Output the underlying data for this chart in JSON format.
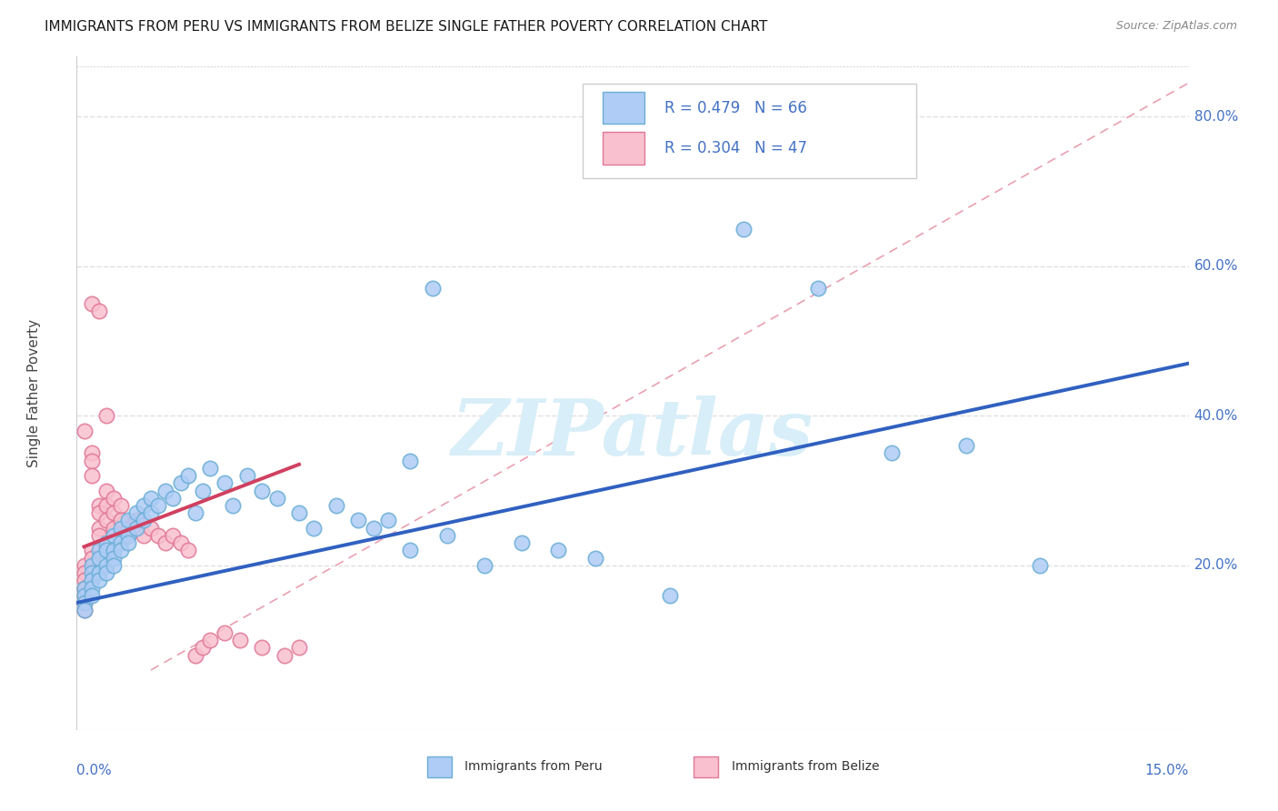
{
  "title": "IMMIGRANTS FROM PERU VS IMMIGRANTS FROM BELIZE SINGLE FATHER POVERTY CORRELATION CHART",
  "source": "Source: ZipAtlas.com",
  "ylabel": "Single Father Poverty",
  "xlim": [
    0.0,
    0.15
  ],
  "ylim": [
    -0.02,
    0.88
  ],
  "yaxis_labels": [
    "20.0%",
    "40.0%",
    "60.0%",
    "80.0%"
  ],
  "yaxis_values": [
    0.2,
    0.4,
    0.6,
    0.8
  ],
  "peru_color": "#aeccf5",
  "peru_edge_color": "#6baed6",
  "belize_color": "#f9c0cf",
  "belize_edge_color": "#e07898",
  "peru_line_color": "#3060c0",
  "belize_line_color": "#d04060",
  "ref_line_color": "#e8a0b0",
  "watermark_color": "#d8eef8",
  "grid_color": "#e0e0e0",
  "title_fontsize": 11,
  "axis_label_color": "#4472c4",
  "legend_text_color": "#4472c4",
  "peru_scatter_x": [
    0.001,
    0.001,
    0.001,
    0.001,
    0.002,
    0.002,
    0.002,
    0.002,
    0.002,
    0.003,
    0.003,
    0.003,
    0.003,
    0.004,
    0.004,
    0.004,
    0.004,
    0.005,
    0.005,
    0.005,
    0.005,
    0.006,
    0.006,
    0.006,
    0.007,
    0.007,
    0.007,
    0.008,
    0.008,
    0.009,
    0.009,
    0.01,
    0.01,
    0.011,
    0.012,
    0.013,
    0.014,
    0.015,
    0.016,
    0.017,
    0.018,
    0.02,
    0.021,
    0.023,
    0.025,
    0.027,
    0.03,
    0.032,
    0.035,
    0.038,
    0.04,
    0.042,
    0.045,
    0.05,
    0.055,
    0.06,
    0.065,
    0.07,
    0.08,
    0.09,
    0.1,
    0.11,
    0.12,
    0.13,
    0.048,
    0.045
  ],
  "peru_scatter_y": [
    0.17,
    0.16,
    0.15,
    0.14,
    0.2,
    0.19,
    0.18,
    0.17,
    0.16,
    0.22,
    0.21,
    0.19,
    0.18,
    0.23,
    0.22,
    0.2,
    0.19,
    0.24,
    0.22,
    0.21,
    0.2,
    0.25,
    0.23,
    0.22,
    0.26,
    0.24,
    0.23,
    0.27,
    0.25,
    0.28,
    0.26,
    0.29,
    0.27,
    0.28,
    0.3,
    0.29,
    0.31,
    0.32,
    0.27,
    0.3,
    0.33,
    0.31,
    0.28,
    0.32,
    0.3,
    0.29,
    0.27,
    0.25,
    0.28,
    0.26,
    0.25,
    0.26,
    0.22,
    0.24,
    0.2,
    0.23,
    0.22,
    0.21,
    0.16,
    0.65,
    0.57,
    0.35,
    0.36,
    0.2,
    0.57,
    0.34
  ],
  "belize_scatter_x": [
    0.001,
    0.001,
    0.001,
    0.001,
    0.001,
    0.001,
    0.001,
    0.001,
    0.002,
    0.002,
    0.002,
    0.002,
    0.002,
    0.003,
    0.003,
    0.003,
    0.003,
    0.004,
    0.004,
    0.004,
    0.005,
    0.005,
    0.005,
    0.006,
    0.006,
    0.007,
    0.007,
    0.008,
    0.008,
    0.009,
    0.01,
    0.011,
    0.012,
    0.013,
    0.014,
    0.015,
    0.016,
    0.017,
    0.018,
    0.02,
    0.022,
    0.025,
    0.028,
    0.03,
    0.002,
    0.003,
    0.004
  ],
  "belize_scatter_y": [
    0.38,
    0.2,
    0.19,
    0.18,
    0.17,
    0.16,
    0.15,
    0.14,
    0.35,
    0.34,
    0.32,
    0.22,
    0.21,
    0.28,
    0.27,
    0.25,
    0.24,
    0.3,
    0.28,
    0.26,
    0.29,
    0.27,
    0.25,
    0.28,
    0.26,
    0.25,
    0.24,
    0.26,
    0.25,
    0.24,
    0.25,
    0.24,
    0.23,
    0.24,
    0.23,
    0.22,
    0.08,
    0.09,
    0.1,
    0.11,
    0.1,
    0.09,
    0.08,
    0.09,
    0.55,
    0.54,
    0.4
  ],
  "peru_line_x0": 0.0,
  "peru_line_y0": 0.15,
  "peru_line_x1": 0.15,
  "peru_line_y1": 0.47,
  "belize_line_x0": 0.001,
  "belize_line_y0": 0.225,
  "belize_line_x1": 0.03,
  "belize_line_y1": 0.335,
  "ref_line_x0": 0.01,
  "ref_line_y0": 0.06,
  "ref_line_x1": 0.15,
  "ref_line_y1": 0.845
}
